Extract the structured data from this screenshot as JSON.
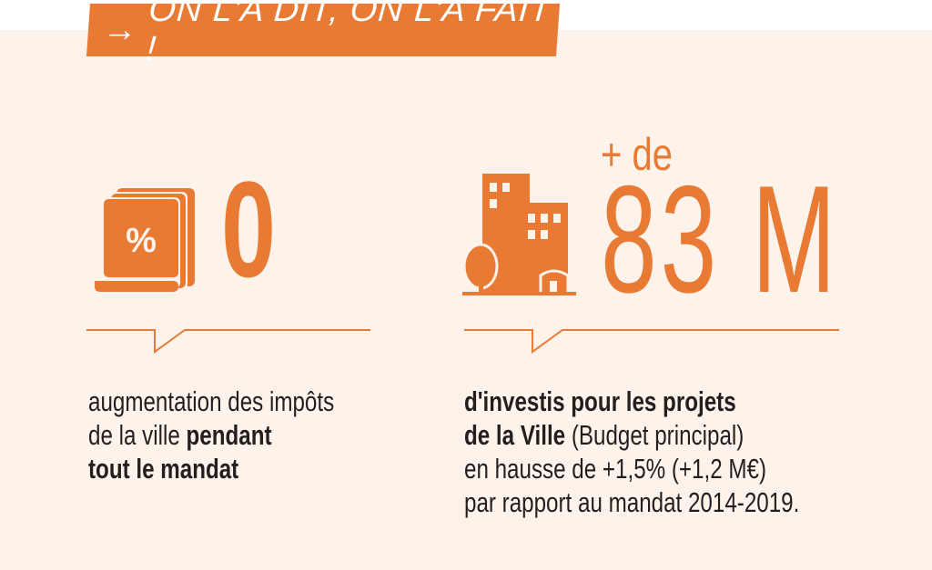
{
  "banner": {
    "arrow": "→",
    "title": "ON L'A DIT, ON L'A FAIT !"
  },
  "stats": [
    {
      "value": "0",
      "icon": "tax-percent-icon",
      "lines": [
        {
          "normal": "augmentation des impôts",
          "bold": ""
        },
        {
          "normal": "de la ville ",
          "bold": "pendant"
        },
        {
          "normal": "",
          "bold": "tout le mandat"
        }
      ]
    },
    {
      "prefix": "+ de",
      "value": "83 M",
      "icon": "city-buildings-icon",
      "lines": [
        {
          "bold": "d'investis pour les projets",
          "normal": ""
        },
        {
          "bold": "de la Ville",
          "normal": " (Budget principal)"
        },
        {
          "bold": "",
          "normal": "en hausse de +1,5% (+1,2 M€)"
        },
        {
          "bold": "",
          "normal": "par rapport au mandat 2014-2019."
        }
      ]
    }
  ],
  "colors": {
    "accent": "#e87a34",
    "background": "#fdf3ea",
    "text": "#231f20"
  }
}
